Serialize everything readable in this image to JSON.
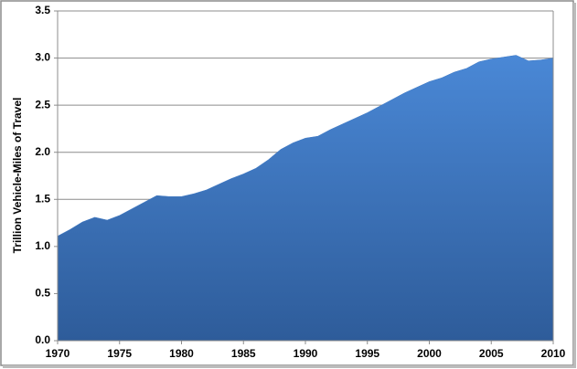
{
  "chart_data": {
    "type": "area",
    "y_label": "Trillion Vehicle-Miles of Travel",
    "x": [
      1970,
      1971,
      1972,
      1973,
      1974,
      1975,
      1976,
      1977,
      1978,
      1979,
      1980,
      1981,
      1982,
      1983,
      1984,
      1985,
      1986,
      1987,
      1988,
      1989,
      1990,
      1991,
      1992,
      1993,
      1994,
      1995,
      1996,
      1997,
      1998,
      1999,
      2000,
      2001,
      2002,
      2003,
      2004,
      2005,
      2006,
      2007,
      2008,
      2009,
      2010
    ],
    "values": [
      1.11,
      1.18,
      1.26,
      1.31,
      1.28,
      1.33,
      1.4,
      1.47,
      1.54,
      1.53,
      1.53,
      1.56,
      1.6,
      1.66,
      1.72,
      1.77,
      1.83,
      1.92,
      2.03,
      2.1,
      2.15,
      2.17,
      2.24,
      2.3,
      2.36,
      2.42,
      2.49,
      2.56,
      2.63,
      2.69,
      2.75,
      2.79,
      2.85,
      2.89,
      2.96,
      2.99,
      3.01,
      3.03,
      2.97,
      2.98,
      3.0
    ],
    "color": "#3d78c4",
    "xlim": [
      1970,
      2010
    ],
    "xticks": [
      1970,
      1975,
      1980,
      1985,
      1990,
      1995,
      2000,
      2005,
      2010
    ],
    "ylim": [
      0,
      3.5
    ],
    "yticks": [
      {
        "value": 0,
        "label": "0.0"
      },
      {
        "value": 0.5,
        "label": "0.5"
      },
      {
        "value": 1,
        "label": "1.0"
      },
      {
        "value": 1.5,
        "label": "1.5"
      },
      {
        "value": 2,
        "label": "2.0"
      },
      {
        "value": 2.5,
        "label": "2.5"
      },
      {
        "value": 3,
        "label": "3.0"
      },
      {
        "value": 3.5,
        "label": "3.5"
      }
    ],
    "grid": true
  }
}
